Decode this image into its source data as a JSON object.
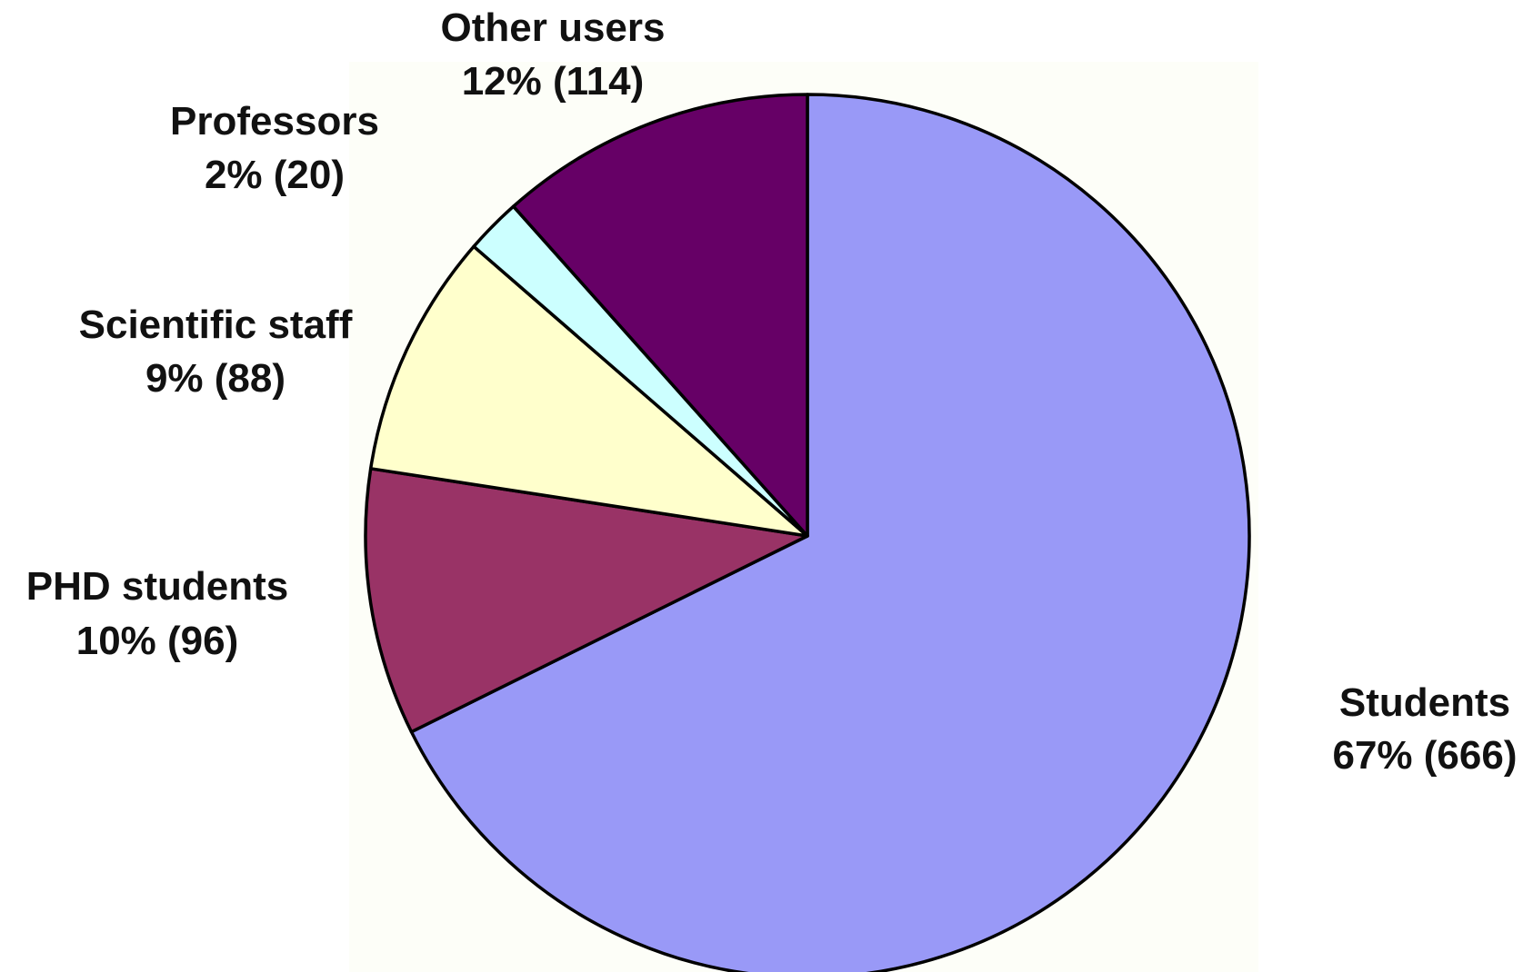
{
  "chart_data": {
    "type": "pie",
    "title": "",
    "legend": "none",
    "plot_area_background": "#FDFEF8",
    "slices": [
      {
        "name": "Students",
        "percent": 67,
        "count": 666,
        "percent_label": "67% (666)",
        "color": "#9999F7"
      },
      {
        "name": "PHD students",
        "percent": 10,
        "count": 96,
        "percent_label": "10% (96)",
        "color": "#993366"
      },
      {
        "name": "Scientific staff",
        "percent": 9,
        "count": 88,
        "percent_label": "9% (88)",
        "color": "#FFFFCC"
      },
      {
        "name": "Professors",
        "percent": 2,
        "count": 20,
        "percent_label": "2% (20)",
        "color": "#CCFFFF"
      },
      {
        "name": "Other users",
        "percent": 12,
        "count": 114,
        "percent_label": "12% (114)",
        "color": "#660066"
      }
    ]
  }
}
